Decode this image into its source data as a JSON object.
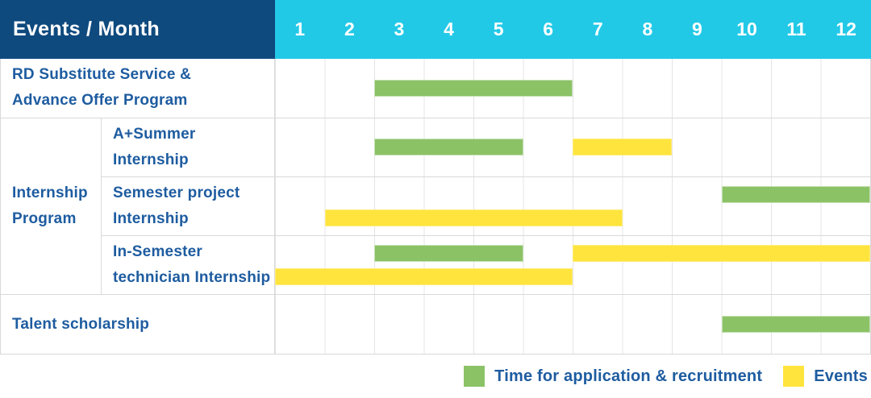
{
  "header": {
    "title": "Events / Month"
  },
  "colors": {
    "header_navy": "#0F4A7E",
    "header_cyan": "#22C9E7",
    "bar_green": "#8BC266",
    "bar_yellow": "#FFE43E",
    "label_blue": "#1E5CA0",
    "grid_gray": "#D9D9D9"
  },
  "chart_data": {
    "type": "table",
    "chart_style": "gantt",
    "title": "Events / Month",
    "x_axis_label": "Month",
    "x_range": [
      1,
      12
    ],
    "months": [
      "1",
      "2",
      "3",
      "4",
      "5",
      "6",
      "7",
      "8",
      "9",
      "10",
      "11",
      "12"
    ],
    "legend_position": "bottom-right",
    "legend": [
      {
        "key": "recruitment",
        "label": "Time for application & recruitment",
        "color": "#8BC266"
      },
      {
        "key": "events",
        "label": "Events",
        "color": "#FFE43E"
      }
    ],
    "group_label_lines": [
      "Internship",
      "Program"
    ],
    "rows": [
      {
        "event": "RD Substitute Service & Advance Offer Program",
        "label_lines": [
          "RD Substitute Service &",
          "Advance Offer Program"
        ],
        "group": null,
        "line_count": 1,
        "bars": [
          {
            "series": "recruitment",
            "start_month": 3,
            "end_month": 6,
            "line": 0
          }
        ]
      },
      {
        "event": "A+Summer Internship",
        "label_lines": [
          "A+Summer",
          "Internship"
        ],
        "group": "Internship Program",
        "line_count": 1,
        "bars": [
          {
            "series": "recruitment",
            "start_month": 3,
            "end_month": 5,
            "line": 0
          },
          {
            "series": "events",
            "start_month": 7,
            "end_month": 8,
            "line": 0
          }
        ]
      },
      {
        "event": "Semester project Internship",
        "label_lines": [
          "Semester project",
          "Internship"
        ],
        "group": "Internship Program",
        "line_count": 2,
        "bars": [
          {
            "series": "recruitment",
            "start_month": 10,
            "end_month": 12,
            "line": 0
          },
          {
            "series": "events",
            "start_month": 2,
            "end_month": 7,
            "line": 1
          }
        ]
      },
      {
        "event": "In-Semester technician Internship",
        "label_lines": [
          "In-Semester",
          "technician Internship"
        ],
        "group": "Internship Program",
        "line_count": 2,
        "bars": [
          {
            "series": "recruitment",
            "start_month": 3,
            "end_month": 5,
            "line": 0
          },
          {
            "series": "events",
            "start_month": 7,
            "end_month": 12,
            "line": 0
          },
          {
            "series": "events",
            "start_month": 1,
            "end_month": 6,
            "line": 1
          }
        ]
      },
      {
        "event": "Talent scholarship",
        "label_lines": [
          "Talent scholarship"
        ],
        "group": null,
        "line_count": 1,
        "bars": [
          {
            "series": "recruitment",
            "start_month": 10,
            "end_month": 12,
            "line": 0
          }
        ]
      }
    ]
  }
}
